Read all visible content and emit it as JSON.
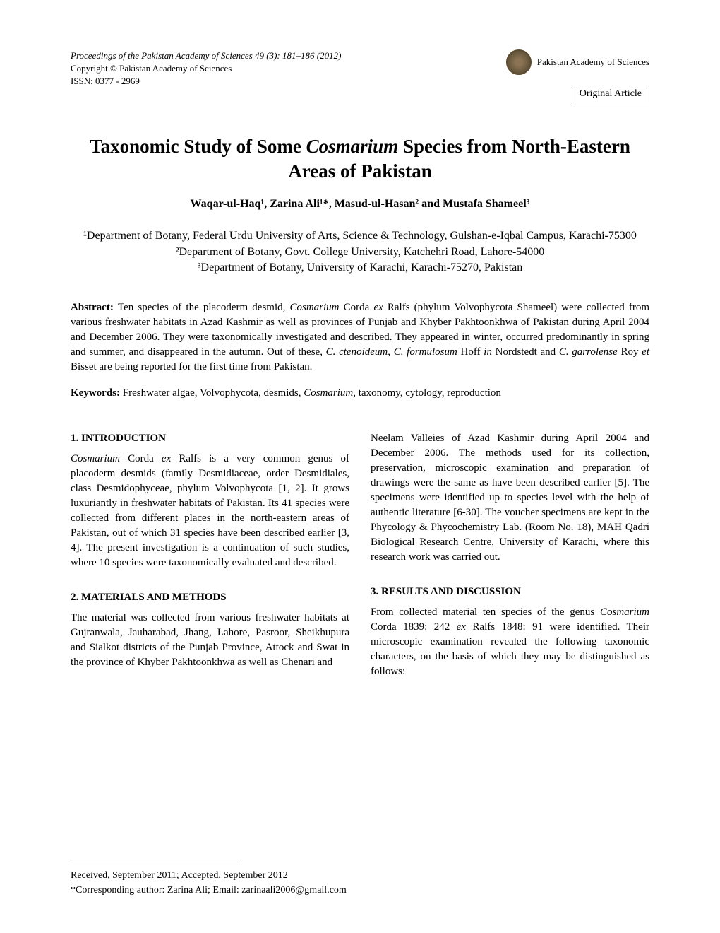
{
  "header": {
    "journal_line": "Proceedings of the Pakistan Academy of Sciences 49 (3): 181–186 (2012)",
    "copyright_line": "Copyright © Pakistan Academy of Sciences",
    "issn_line": "ISSN: 0377 - 2969",
    "academy_name": "Pakistan Academy of Sciences",
    "article_type": "Original Article"
  },
  "title": {
    "pre": "Taxonomic Study of Some ",
    "italic": "Cosmarium",
    "post": " Species from North-Eastern Areas of Pakistan"
  },
  "authors": "Waqar-ul-Haq¹, Zarina Ali¹*, Masud-ul-Hasan² and Mustafa Shameel³",
  "affiliations": {
    "a1": "¹Department of Botany, Federal Urdu University of Arts, Science & Technology, Gulshan-e-Iqbal Campus, Karachi-75300",
    "a2": "²Department of Botany, Govt. College University, Katchehri Road, Lahore-54000",
    "a3": "³Department of Botany, University of Karachi, Karachi-75270, Pakistan"
  },
  "abstract": {
    "label": "Abstract: ",
    "text_parts": [
      "Ten species of the placoderm desmid, ",
      "Cosmarium",
      " Corda ",
      "ex",
      " Ralfs (phylum Volvophycota Shameel) were collected from various freshwater habitats in Azad Kashmir as well as provinces of Punjab and Khyber Pakhtoonkhwa of Pakistan during April 2004 and December 2006. They were taxonomically investigated and described. They appeared in winter, occurred predominantly in spring and summer, and disappeared in the autumn. Out of these, ",
      "C. ctenoideum",
      ", ",
      "C. formulosum",
      " Hoff ",
      "in",
      " Nordstedt and ",
      "C. garrolense",
      " Roy ",
      "et",
      " Bisset are being reported for the first time from Pakistan."
    ]
  },
  "keywords": {
    "label": "Keywords: ",
    "text_parts": [
      "Freshwater algae, Volvophycota, desmids, ",
      "Cosmarium",
      ", taxonomy, cytology, reproduction"
    ]
  },
  "sections": {
    "intro": {
      "heading": "1. INTRODUCTION",
      "body_parts": [
        "Cosmarium",
        " Corda ",
        "ex",
        " Ralfs is a very common genus of placoderm desmids (family Desmidiaceae, order Desmidiales, class Desmidophyceae, phylum Volvophycota [1, 2]. It grows luxuriantly in freshwater habitats of Pakistan. Its 41 species were collected from different places in the north-eastern areas of Pakistan, out of which 31 species have been described earlier [3, 4]. The present investigation is a continuation of such studies, where 10 species were taxonomically evaluated and described."
      ]
    },
    "methods": {
      "heading": "2. MATERIALS AND METHODS",
      "body_left": "The material was collected from various freshwater habitats at Gujranwala, Jauharabad, Jhang, Lahore, Pasroor, Sheikhupura and Sialkot districts of the Punjab Province, Attock and Swat in the province of Khyber Pakhtoonkhwa as well as Chenari and",
      "body_right": "Neelam Valleies of Azad Kashmir during April 2004 and December 2006. The methods used for its collection, preservation, microscopic examination and preparation of drawings were the same as have been described earlier [5]. The specimens were identified up to species level with the help of authentic literature [6-30]. The voucher specimens are kept in the Phycology & Phycochemistry Lab. (Room No. 18), MAH Qadri Biological Research Centre, University of Karachi, where this research work was carried out."
    },
    "results": {
      "heading": "3. RESULTS AND DISCUSSION",
      "body_parts": [
        "From collected material ten species of the genus ",
        "Cosmarium",
        " Corda 1839: 242 ",
        "ex",
        " Ralfs 1848: 91 were identified. Their microscopic examination revealed the following taxonomic characters, on the basis of which they may be distinguished as follows:"
      ]
    }
  },
  "footer": {
    "received": "Received, September 2011; Accepted, September 2012",
    "corresponding": "*Corresponding author: Zarina Ali;  Email: zarinaali2006@gmail.com"
  },
  "colors": {
    "text": "#000000",
    "background": "#ffffff",
    "logo_outer": "#4a3f28",
    "logo_mid": "#6b5a3f",
    "logo_inner": "#8b7355"
  }
}
